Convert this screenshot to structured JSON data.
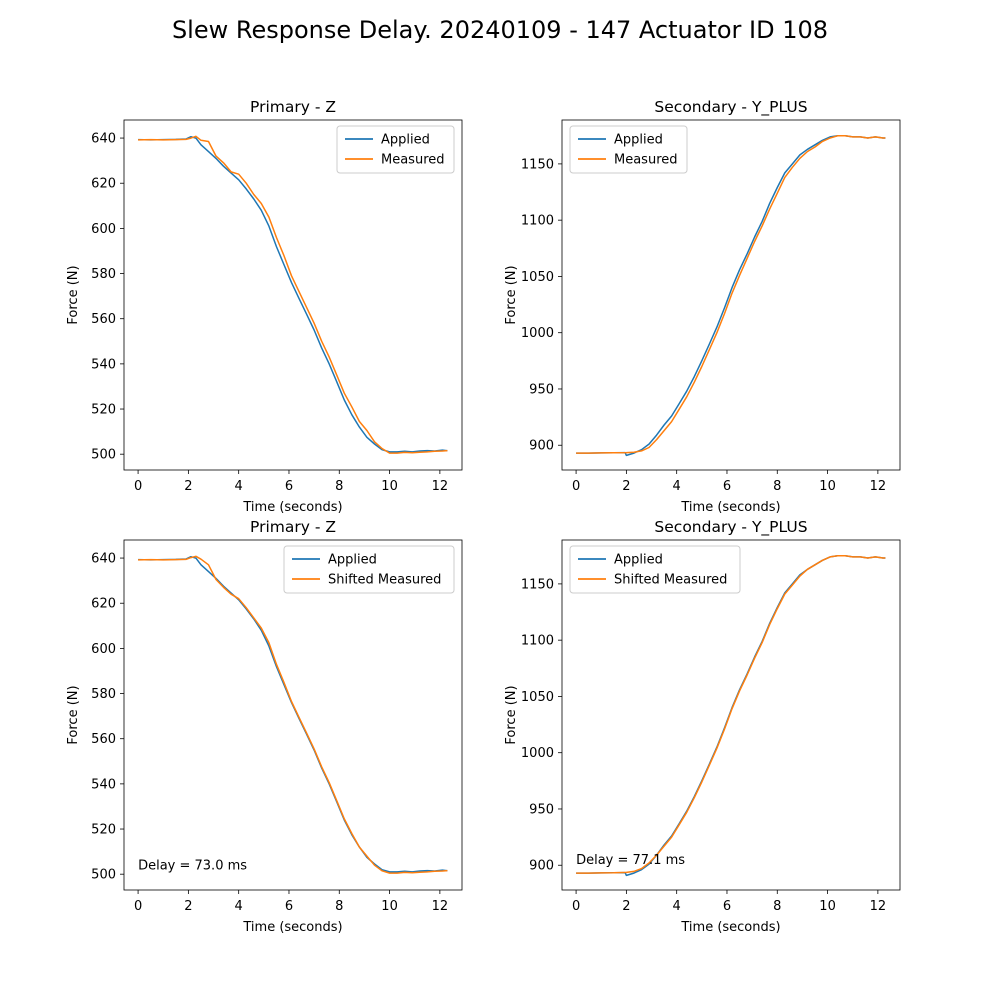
{
  "figure": {
    "title": "Slew Response Delay. 20240109 - 147 Actuator ID 108"
  },
  "colors": {
    "applied": "#1f77b4",
    "measured": "#ff7f0e"
  },
  "chart_data": [
    {
      "type": "line",
      "title": "Primary - Z",
      "xlabel": "Time (seconds)",
      "ylabel": "Force (N)",
      "xlim": [
        -0.56,
        12.88
      ],
      "ylim": [
        493,
        648
      ],
      "xticks": [
        0,
        2,
        4,
        6,
        8,
        10,
        12
      ],
      "yticks": [
        500,
        520,
        540,
        560,
        580,
        600,
        620,
        640
      ],
      "legend_position": "upper right",
      "annotation": "",
      "series": [
        {
          "name": "Applied",
          "color": "#1f77b4",
          "x": [
            0,
            0.5,
            1.0,
            1.5,
            1.9,
            2.1,
            2.3,
            2.5,
            2.8,
            3.1,
            3.4,
            3.7,
            4.0,
            4.3,
            4.6,
            4.9,
            5.2,
            5.5,
            5.8,
            6.1,
            6.4,
            6.7,
            7.0,
            7.3,
            7.6,
            7.9,
            8.2,
            8.5,
            8.8,
            9.1,
            9.4,
            9.7,
            10.0,
            10.3,
            10.6,
            10.9,
            11.2,
            11.5,
            11.8,
            12.1,
            12.3
          ],
          "y": [
            639.3,
            639.2,
            639.3,
            639.4,
            639.6,
            640.6,
            640.0,
            637.0,
            634.0,
            631.0,
            627.5,
            624.5,
            621.5,
            617.5,
            613.0,
            608.0,
            601.0,
            592.0,
            584.0,
            576.0,
            569.0,
            562.0,
            555.0,
            547.0,
            540.0,
            532.0,
            524.0,
            517.5,
            512.0,
            507.5,
            504.5,
            502.0,
            501.0,
            501.0,
            501.3,
            501.0,
            501.4,
            501.6,
            501.4,
            501.8,
            501.5
          ]
        },
        {
          "name": "Measured",
          "color": "#ff7f0e",
          "x": [
            0,
            0.5,
            1.0,
            1.5,
            1.9,
            2.1,
            2.3,
            2.5,
            2.8,
            3.1,
            3.4,
            3.7,
            4.0,
            4.3,
            4.6,
            4.9,
            5.2,
            5.5,
            5.8,
            6.1,
            6.4,
            6.7,
            7.0,
            7.3,
            7.6,
            7.9,
            8.2,
            8.5,
            8.8,
            9.1,
            9.4,
            9.7,
            10.0,
            10.3,
            10.6,
            10.9,
            11.2,
            11.5,
            11.8,
            12.1,
            12.3
          ],
          "y": [
            639.2,
            639.3,
            639.2,
            639.3,
            639.4,
            640.0,
            640.8,
            639.0,
            638.5,
            632.0,
            629.0,
            625.0,
            624.0,
            620.0,
            615.0,
            611.0,
            605.0,
            596.0,
            588.0,
            579.0,
            572.0,
            565.0,
            558.0,
            550.0,
            543.0,
            535.0,
            527.0,
            521.0,
            514.5,
            510.5,
            505.5,
            502.5,
            500.5,
            500.5,
            500.8,
            500.6,
            500.9,
            501.0,
            501.3,
            501.4,
            501.6
          ]
        }
      ]
    },
    {
      "type": "line",
      "title": "Secondary - Y_PLUS",
      "xlabel": "Time (seconds)",
      "ylabel": "Force (N)",
      "xlim": [
        -0.56,
        12.88
      ],
      "ylim": [
        878,
        1189
      ],
      "xticks": [
        0,
        2,
        4,
        6,
        8,
        10,
        12
      ],
      "yticks": [
        900,
        950,
        1000,
        1050,
        1100,
        1150
      ],
      "legend_position": "upper left",
      "annotation": "",
      "series": [
        {
          "name": "Applied",
          "color": "#1f77b4",
          "x": [
            0,
            0.5,
            1.0,
            1.5,
            1.95,
            2.0,
            2.3,
            2.6,
            2.9,
            3.2,
            3.5,
            3.8,
            4.1,
            4.4,
            4.7,
            5.0,
            5.3,
            5.6,
            5.9,
            6.2,
            6.5,
            6.8,
            7.1,
            7.4,
            7.7,
            8.0,
            8.3,
            8.6,
            8.9,
            9.2,
            9.5,
            9.8,
            10.1,
            10.4,
            10.7,
            11.0,
            11.3,
            11.6,
            11.9,
            12.2,
            12.3
          ],
          "y": [
            893,
            893,
            893.2,
            893.4,
            893.5,
            891,
            893,
            896,
            901,
            909,
            918,
            926,
            937,
            948,
            961,
            975,
            990,
            1005,
            1022,
            1040,
            1056,
            1070,
            1085,
            1099,
            1115,
            1129,
            1142,
            1150,
            1158,
            1163,
            1167,
            1171,
            1174,
            1175,
            1175,
            1174,
            1174,
            1173,
            1174,
            1173,
            1173
          ]
        },
        {
          "name": "Measured",
          "color": "#ff7f0e",
          "x": [
            0,
            0.5,
            1.0,
            1.5,
            2.0,
            2.3,
            2.6,
            2.9,
            3.2,
            3.5,
            3.8,
            4.1,
            4.4,
            4.7,
            5.0,
            5.3,
            5.6,
            5.9,
            6.2,
            6.5,
            6.8,
            7.1,
            7.4,
            7.7,
            8.0,
            8.3,
            8.6,
            8.9,
            9.2,
            9.5,
            9.8,
            10.1,
            10.4,
            10.7,
            11.0,
            11.3,
            11.6,
            11.9,
            12.2,
            12.3
          ],
          "y": [
            893,
            893,
            893.2,
            893.3,
            893.5,
            893.8,
            895,
            898,
            905,
            913,
            921,
            932,
            943,
            956,
            970,
            985,
            1000,
            1017,
            1035,
            1051,
            1066,
            1081,
            1095,
            1110,
            1124,
            1138,
            1147,
            1155,
            1161,
            1165,
            1170,
            1173,
            1175,
            1175,
            1174,
            1174,
            1173,
            1174,
            1173,
            1173
          ]
        }
      ]
    },
    {
      "type": "line",
      "title": "Primary - Z",
      "xlabel": "Time (seconds)",
      "ylabel": "Force (N)",
      "xlim": [
        -0.56,
        12.88
      ],
      "ylim": [
        493,
        648
      ],
      "xticks": [
        0,
        2,
        4,
        6,
        8,
        10,
        12
      ],
      "yticks": [
        500,
        520,
        540,
        560,
        580,
        600,
        620,
        640
      ],
      "legend_position": "upper right",
      "annotation": "Delay = 73.0 ms",
      "series": [
        {
          "name": "Applied",
          "color": "#1f77b4",
          "x": [
            0,
            0.5,
            1.0,
            1.5,
            1.9,
            2.1,
            2.3,
            2.5,
            2.8,
            3.1,
            3.4,
            3.7,
            4.0,
            4.3,
            4.6,
            4.9,
            5.2,
            5.5,
            5.8,
            6.1,
            6.4,
            6.7,
            7.0,
            7.3,
            7.6,
            7.9,
            8.2,
            8.5,
            8.8,
            9.1,
            9.4,
            9.7,
            10.0,
            10.3,
            10.6,
            10.9,
            11.2,
            11.5,
            11.8,
            12.1,
            12.3
          ],
          "y": [
            639.3,
            639.2,
            639.3,
            639.4,
            639.6,
            640.6,
            640.0,
            637.0,
            634.0,
            631.0,
            627.5,
            624.5,
            621.5,
            617.5,
            613.0,
            608.0,
            601.0,
            592.0,
            584.0,
            576.0,
            569.0,
            562.0,
            555.0,
            547.0,
            540.0,
            532.0,
            524.0,
            517.5,
            512.0,
            507.5,
            504.5,
            502.0,
            501.0,
            501.0,
            501.3,
            501.0,
            501.4,
            501.6,
            501.4,
            501.8,
            501.5
          ]
        },
        {
          "name": "Shifted Measured",
          "color": "#ff7f0e",
          "x": [
            0,
            0.5,
            1.0,
            1.5,
            1.9,
            2.1,
            2.3,
            2.5,
            2.8,
            3.1,
            3.4,
            3.7,
            4.0,
            4.3,
            4.6,
            4.9,
            5.2,
            5.5,
            5.8,
            6.1,
            6.4,
            6.7,
            7.0,
            7.3,
            7.6,
            7.9,
            8.2,
            8.5,
            8.8,
            9.1,
            9.4,
            9.7,
            10.0,
            10.3,
            10.6,
            10.9,
            11.2,
            11.5,
            11.8,
            12.1,
            12.3
          ],
          "y": [
            639.2,
            639.3,
            639.2,
            639.3,
            639.4,
            640.2,
            640.8,
            639.5,
            637.0,
            630.5,
            627.0,
            624.0,
            622.0,
            618.0,
            613.5,
            609.0,
            602.5,
            593.0,
            585.0,
            576.5,
            569.5,
            562.5,
            555.5,
            547.5,
            540.5,
            532.5,
            524.5,
            518.0,
            512.0,
            508.0,
            504.0,
            501.5,
            500.5,
            500.5,
            500.8,
            500.6,
            500.9,
            501.0,
            501.3,
            501.4,
            501.6
          ]
        }
      ]
    },
    {
      "type": "line",
      "title": "Secondary - Y_PLUS",
      "xlabel": "Time (seconds)",
      "ylabel": "Force (N)",
      "xlim": [
        -0.56,
        12.88
      ],
      "ylim": [
        878,
        1189
      ],
      "xticks": [
        0,
        2,
        4,
        6,
        8,
        10,
        12
      ],
      "yticks": [
        900,
        950,
        1000,
        1050,
        1100,
        1150
      ],
      "legend_position": "upper left",
      "annotation": "Delay = 77.1 ms",
      "series": [
        {
          "name": "Applied",
          "color": "#1f77b4",
          "x": [
            0,
            0.5,
            1.0,
            1.5,
            1.95,
            2.0,
            2.3,
            2.6,
            2.9,
            3.2,
            3.5,
            3.8,
            4.1,
            4.4,
            4.7,
            5.0,
            5.3,
            5.6,
            5.9,
            6.2,
            6.5,
            6.8,
            7.1,
            7.4,
            7.7,
            8.0,
            8.3,
            8.6,
            8.9,
            9.2,
            9.5,
            9.8,
            10.1,
            10.4,
            10.7,
            11.0,
            11.3,
            11.6,
            11.9,
            12.2,
            12.3
          ],
          "y": [
            893,
            893,
            893.2,
            893.4,
            893.5,
            891,
            893,
            896,
            901,
            909,
            918,
            926,
            937,
            948,
            961,
            975,
            990,
            1005,
            1022,
            1040,
            1056,
            1070,
            1085,
            1099,
            1115,
            1129,
            1142,
            1150,
            1158,
            1163,
            1167,
            1171,
            1174,
            1175,
            1175,
            1174,
            1174,
            1173,
            1174,
            1173,
            1173
          ]
        },
        {
          "name": "Shifted Measured",
          "color": "#ff7f0e",
          "x": [
            0,
            0.5,
            1.0,
            1.5,
            2.0,
            2.3,
            2.6,
            2.9,
            3.2,
            3.5,
            3.8,
            4.1,
            4.4,
            4.7,
            5.0,
            5.3,
            5.6,
            5.9,
            6.2,
            6.5,
            6.8,
            7.1,
            7.4,
            7.7,
            8.0,
            8.3,
            8.6,
            8.9,
            9.2,
            9.5,
            9.8,
            10.1,
            10.4,
            10.7,
            11.0,
            11.3,
            11.6,
            11.9,
            12.2,
            12.3
          ],
          "y": [
            893,
            893,
            893.2,
            893.3,
            893.6,
            894.5,
            897,
            902,
            909,
            917,
            925,
            936,
            947,
            960,
            974,
            989,
            1004,
            1021,
            1039,
            1055,
            1069,
            1084,
            1098,
            1114,
            1128,
            1141,
            1149,
            1157,
            1163,
            1167,
            1171,
            1174,
            1175,
            1175,
            1174,
            1174,
            1173,
            1174,
            1173,
            1173
          ]
        }
      ]
    }
  ]
}
